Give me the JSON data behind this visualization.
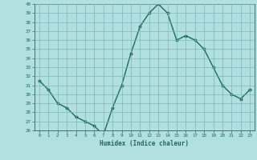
{
  "x": [
    0,
    1,
    2,
    3,
    4,
    5,
    6,
    7,
    8,
    9,
    10,
    11,
    12,
    13,
    14,
    15,
    16,
    17,
    18,
    19,
    20,
    21,
    22,
    23
  ],
  "y": [
    31.5,
    30.5,
    29.0,
    28.5,
    27.5,
    27.0,
    26.5,
    25.5,
    28.5,
    31.0,
    34.5,
    37.5,
    39.0,
    40.0,
    39.0,
    36.0,
    36.5,
    36.0,
    35.0,
    33.0,
    31.0,
    30.0,
    29.5,
    30.5
  ],
  "line_color": "#1a6b5a",
  "marker": "o",
  "markersize": 1.8,
  "linewidth": 1.0,
  "xlabel": "Humidex (Indice chaleur)",
  "ylim": [
    26,
    40
  ],
  "xlim": [
    -0.5,
    23.5
  ],
  "yticks": [
    26,
    27,
    28,
    29,
    30,
    31,
    32,
    33,
    34,
    35,
    36,
    37,
    38,
    39,
    40
  ],
  "xticks": [
    0,
    1,
    2,
    3,
    4,
    5,
    6,
    7,
    8,
    9,
    10,
    11,
    12,
    13,
    14,
    15,
    16,
    17,
    18,
    19,
    20,
    21,
    22,
    23
  ],
  "bg_color": "#b2e0e0",
  "grid_color": "#7ab8b8",
  "tick_color": "#1a6b5a",
  "label_color": "#1a6b5a",
  "font_family": "monospace"
}
